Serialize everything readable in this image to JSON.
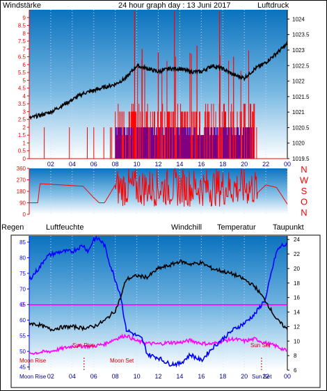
{
  "page": {
    "title": "24 hour graph day : 13 Juni 2017",
    "windstaerke_label": "Windstärke",
    "luftdruck_label": "Luftdruck"
  },
  "colors": {
    "wind": "#ff0000",
    "gust_blue": "#0000ff",
    "pressure": "#000000",
    "humidity": "#0000ff",
    "temperature": "#000000",
    "windchill": "#008000",
    "dewpoint": "#ff00ff",
    "regen": "#ff00ff",
    "title": "#0000c0"
  },
  "chart_data": [
    {
      "type": "bar",
      "name": "wind_pressure",
      "title": "24 hour graph day : 13 Juni 2017",
      "ylabel": "Windstärke",
      "y2label": "Luftdruck",
      "x_ticks": [
        "02",
        "04",
        "06",
        "08",
        "10",
        "12",
        "14",
        "16",
        "18",
        "20",
        "22",
        "00"
      ],
      "y_ticks": [
        "0",
        "0.5",
        "1",
        "1.5",
        "2",
        "2.5",
        "3",
        "3.5",
        "4",
        "4.5",
        "5",
        "5.5",
        "6",
        "6.5",
        "7",
        "7.5",
        "8",
        "8.5",
        "9"
      ],
      "y2_ticks": [
        "1019.5",
        "1020",
        "1020.5",
        "1021",
        "1021.5",
        "1022",
        "1022.5",
        "1023",
        "1023.5",
        "1024"
      ],
      "ylim": [
        0,
        9.5
      ],
      "y2lim": [
        1019.5,
        1024.3
      ],
      "pressure_points": [
        [
          0.0,
          1020.8
        ],
        [
          1.0,
          1020.9
        ],
        [
          2.0,
          1021.0
        ],
        [
          3.0,
          1021.2
        ],
        [
          4.0,
          1021.4
        ],
        [
          5.0,
          1021.6
        ],
        [
          6.0,
          1021.7
        ],
        [
          7.0,
          1021.8
        ],
        [
          8.0,
          1021.9
        ],
        [
          9.0,
          1022.1
        ],
        [
          10.0,
          1022.5
        ],
        [
          11.0,
          1022.4
        ],
        [
          12.0,
          1022.3
        ],
        [
          13.0,
          1022.4
        ],
        [
          14.0,
          1022.4
        ],
        [
          15.0,
          1022.3
        ],
        [
          16.0,
          1022.3
        ],
        [
          17.0,
          1022.5
        ],
        [
          18.0,
          1022.4
        ],
        [
          19.0,
          1022.2
        ],
        [
          20.0,
          1022.1
        ],
        [
          21.0,
          1022.4
        ],
        [
          22.0,
          1022.6
        ],
        [
          23.0,
          1022.9
        ],
        [
          24.0,
          1023.2
        ]
      ],
      "wind_active_hours": [
        8,
        21
      ],
      "wind_typical_max": 3.5,
      "wind_spikes": [
        [
          9.8,
          9.4
        ],
        [
          13.5,
          9.4
        ],
        [
          17.7,
          9.4
        ],
        [
          10.5,
          7.0
        ],
        [
          12.0,
          6.8
        ],
        [
          15.6,
          7.2
        ],
        [
          19.0,
          6.5
        ]
      ]
    },
    {
      "type": "line",
      "name": "wind_direction",
      "y_ticks": [
        "0",
        "90",
        "180",
        "270",
        "360"
      ],
      "right_labels": [
        "N",
        "W",
        "S",
        "O",
        "N"
      ],
      "ylim": [
        0,
        360
      ],
      "direction_points": [
        [
          0.0,
          90
        ],
        [
          0.8,
          90
        ],
        [
          1.0,
          240
        ],
        [
          3.0,
          230
        ],
        [
          5.0,
          220
        ],
        [
          6.0,
          130
        ],
        [
          6.5,
          90
        ],
        [
          7.0,
          90
        ],
        [
          8.0,
          230
        ],
        [
          9.0,
          200
        ],
        [
          10.0,
          180
        ],
        [
          11.0,
          200
        ],
        [
          12.0,
          190
        ],
        [
          13.0,
          210
        ],
        [
          14.0,
          180
        ],
        [
          15.0,
          200
        ],
        [
          16.0,
          190
        ],
        [
          17.0,
          210
        ],
        [
          18.0,
          180
        ],
        [
          19.0,
          200
        ],
        [
          20.0,
          180
        ],
        [
          21.0,
          150
        ],
        [
          22.0,
          230
        ],
        [
          23.0,
          210
        ],
        [
          24.0,
          80
        ]
      ]
    },
    {
      "type": "line",
      "name": "temp_humidity",
      "labels": {
        "regen": "Regen",
        "luftfeuchte": "Luftfeuchte",
        "windchill": "Windchill",
        "temperatur": "Temperatur",
        "taupunkt": "Taupunkt"
      },
      "x_ticks": [
        "02",
        "04",
        "06",
        "08",
        "10",
        "12",
        "14",
        "16",
        "18",
        "20",
        "22",
        "00"
      ],
      "y_ticks_left": [
        "45",
        "50",
        "55",
        "60",
        "65",
        "70",
        "75",
        "80",
        "85"
      ],
      "y_ticks_right": [
        "6",
        "8",
        "10",
        "12",
        "14",
        "16",
        "18",
        "20",
        "22",
        "24"
      ],
      "ylim_left": [
        44,
        87
      ],
      "ylim_right": [
        6,
        24.5
      ],
      "regen_zero_label": "0",
      "temperature_points": [
        [
          0.0,
          12.5
        ],
        [
          1.0,
          12.2
        ],
        [
          2.0,
          11.6
        ],
        [
          3.0,
          11.9
        ],
        [
          4.0,
          12.0
        ],
        [
          5.0,
          11.8
        ],
        [
          6.0,
          12.0
        ],
        [
          7.0,
          12.8
        ],
        [
          8.0,
          14.2
        ],
        [
          8.5,
          16.0
        ],
        [
          9.0,
          18.5
        ],
        [
          10.0,
          19.0
        ],
        [
          11.0,
          18.8
        ],
        [
          12.0,
          20.0
        ],
        [
          13.0,
          20.4
        ],
        [
          14.0,
          21.0
        ],
        [
          15.0,
          20.6
        ],
        [
          16.0,
          20.8
        ],
        [
          17.0,
          20.0
        ],
        [
          18.0,
          19.6
        ],
        [
          19.0,
          19.2
        ],
        [
          20.0,
          18.5
        ],
        [
          21.0,
          17.5
        ],
        [
          22.0,
          15.5
        ],
        [
          23.0,
          13.0
        ],
        [
          24.0,
          11.6
        ]
      ],
      "humidity_points": [
        [
          0.0,
          73
        ],
        [
          1.0,
          77
        ],
        [
          1.5,
          80
        ],
        [
          2.0,
          81
        ],
        [
          3.0,
          82
        ],
        [
          4.0,
          82
        ],
        [
          5.0,
          84
        ],
        [
          5.5,
          82
        ],
        [
          6.0,
          86
        ],
        [
          6.5,
          86
        ],
        [
          7.0,
          84
        ],
        [
          7.5,
          78
        ],
        [
          8.0,
          73
        ],
        [
          8.5,
          68
        ],
        [
          9.0,
          57
        ],
        [
          10.0,
          55
        ],
        [
          10.5,
          54
        ],
        [
          11.0,
          49
        ],
        [
          12.0,
          48
        ],
        [
          13.0,
          46
        ],
        [
          14.0,
          46
        ],
        [
          15.0,
          49
        ],
        [
          16.0,
          47
        ],
        [
          16.5,
          49
        ],
        [
          17.0,
          51
        ],
        [
          18.0,
          54
        ],
        [
          19.0,
          57
        ],
        [
          20.0,
          59
        ],
        [
          21.0,
          62
        ],
        [
          22.0,
          67
        ],
        [
          22.5,
          75
        ],
        [
          23.0,
          82
        ],
        [
          23.5,
          84
        ],
        [
          24.0,
          84
        ]
      ],
      "dewpoint_points": [
        [
          0.0,
          8.3
        ],
        [
          2.0,
          8.6
        ],
        [
          4.0,
          9.3
        ],
        [
          6.0,
          9.3
        ],
        [
          7.0,
          9.6
        ],
        [
          8.0,
          10.3
        ],
        [
          9.0,
          10.8
        ],
        [
          10.0,
          10.0
        ],
        [
          11.0,
          9.7
        ],
        [
          12.0,
          9.6
        ],
        [
          13.0,
          9.8
        ],
        [
          14.0,
          9.8
        ],
        [
          15.0,
          10.1
        ],
        [
          16.0,
          9.7
        ],
        [
          17.0,
          9.6
        ],
        [
          18.0,
          10.0
        ],
        [
          19.0,
          10.3
        ],
        [
          20.0,
          10.0
        ],
        [
          21.0,
          10.3
        ],
        [
          22.0,
          9.7
        ],
        [
          23.0,
          9.3
        ],
        [
          24.0,
          8.6
        ]
      ],
      "annotations": {
        "moon_rise_left": "Moon Rise",
        "sun_rise": "Sun Rise",
        "moon_set": "Moon Set",
        "sun_set": "Sun Set",
        "moon_rise_axis": "Moon Rise",
        "sun_set_axis": "Sun Set"
      }
    }
  ]
}
